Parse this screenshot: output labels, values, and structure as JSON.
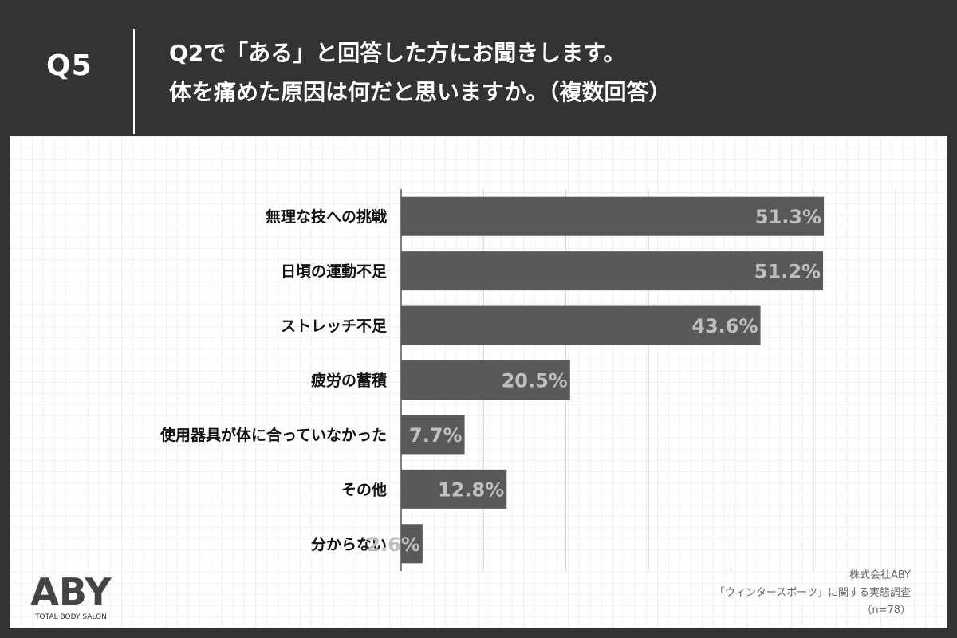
{
  "header": {
    "q_label": "Q5",
    "question_line1": "Q2で「ある」と回答した方にお聞きします。",
    "question_line2": "体を痛めた原因は何だと思いますか。（複数回答）"
  },
  "chart_data": {
    "type": "bar",
    "orientation": "horizontal",
    "categories": [
      "無理な技への挑戦",
      "日頃の運動不足",
      "ストレッチ不足",
      "疲労の蓄積",
      "使用器具が体に合っていなかった",
      "その他",
      "分からない"
    ],
    "values": [
      51.3,
      51.2,
      43.6,
      20.5,
      7.7,
      12.8,
      2.6
    ],
    "value_labels": [
      "51.3%",
      "51.2%",
      "43.6%",
      "20.5%",
      "7.7%",
      "12.8%",
      "2.6%"
    ],
    "xlim": [
      0,
      60
    ],
    "grid": true,
    "bar_color": "#595959",
    "label_color": "#bfbfbf"
  },
  "logo": {
    "mark": "ABY",
    "tagline": "TOTAL BODY SALON"
  },
  "source": {
    "line1": "株式会社ABY",
    "line2": "「ウィンタースポーツ」に関する実態調査",
    "line3": "（n=78）"
  }
}
